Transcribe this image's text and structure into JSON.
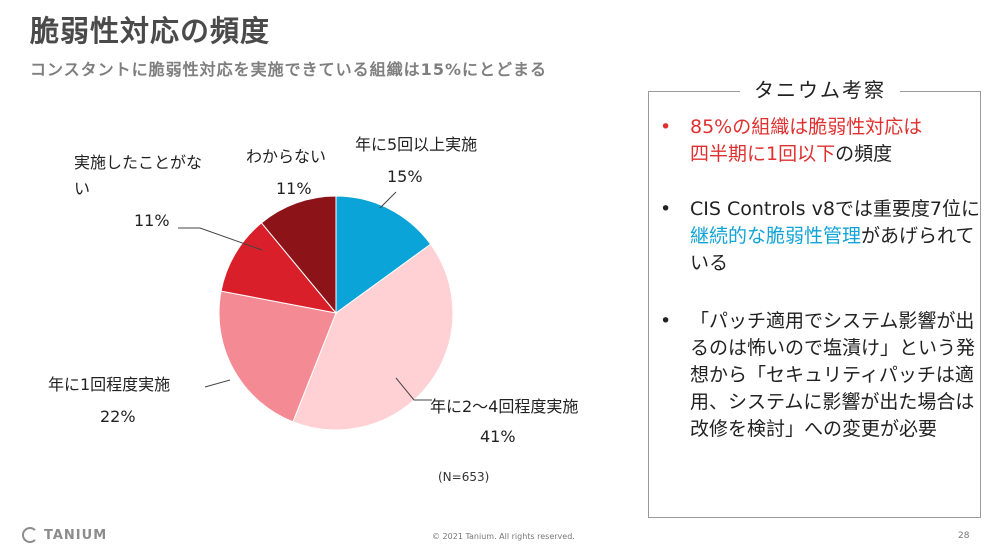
{
  "header": {
    "title": "脆弱性対応の頻度",
    "subtitle": "コンスタントに脆弱性対応を実施できている組織は15%にとどまる"
  },
  "chart_data": {
    "type": "pie",
    "start": "12 o'clock, clockwise",
    "slices": [
      {
        "label": "年に5回以上実施",
        "value": 15,
        "value_label": "15%",
        "color": "#0aa4d8"
      },
      {
        "label": "年に2〜4回程度実施",
        "value": 41,
        "value_label": "41%",
        "color": "#ffd1d4"
      },
      {
        "label": "年に1回程度実施",
        "value": 22,
        "value_label": "22%",
        "color": "#f48a93"
      },
      {
        "label": "実施したことがない",
        "value": 11,
        "value_label": "11%",
        "color": "#d9202a"
      },
      {
        "label": "わからない",
        "value": 11,
        "value_label": "11%",
        "color": "#8c1418"
      }
    ],
    "note": "(N=653)"
  },
  "panel": {
    "title": "タニウム考察",
    "bullet_char": "•",
    "items": [
      {
        "segments": [
          {
            "text": "85%の組織は脆弱性対応は",
            "style": "red"
          },
          {
            "text": "四半期に1回以下",
            "style": "red"
          },
          {
            "text": "の頻度",
            "style": "normal"
          }
        ]
      },
      {
        "segments": [
          {
            "text": "CIS Controls v8では重要度7位に",
            "style": "normal"
          },
          {
            "text": "継続的な脆弱性管理",
            "style": "blue"
          },
          {
            "text": "があげられている",
            "style": "normal"
          }
        ]
      },
      {
        "segments": [
          {
            "text": "「パッチ適用でシステム影響が出るのは怖いので塩漬け」という発想から「セキュリティパッチは適用、システムに影響が出た場合は改修を検討」への変更が必要",
            "style": "normal"
          }
        ]
      }
    ]
  },
  "footer": {
    "logo_text": "TANIUM",
    "copyright": "© 2021 Tanium. All rights reserved.",
    "page_number": "28"
  }
}
